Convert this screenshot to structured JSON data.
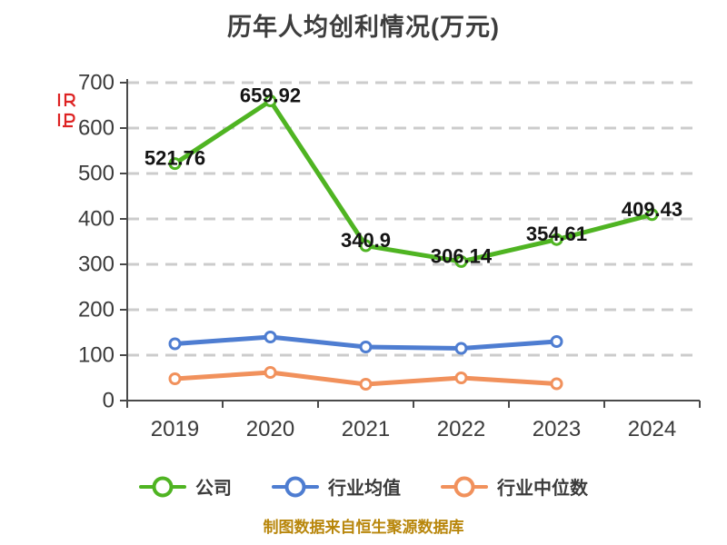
{
  "title": "历年人均创利情况(万元)",
  "credit": "制图数据来自恒生聚源数据库",
  "colors": {
    "title": "#3d3d3d",
    "axis": "#4a4a4a",
    "grid": "#cccccc",
    "axis_label": "#3b3b3b",
    "data_label": "#141414",
    "credit": "#b8860b",
    "watermark_red": "#dd2222",
    "company_green": "#4fb422",
    "industry_avg_blue": "#4e7dd1",
    "industry_median_orange": "#f1915c"
  },
  "chart_data": {
    "type": "line",
    "title": "历年人均创利情况(万元)",
    "categories": [
      "2019",
      "2020",
      "2021",
      "2022",
      "2023",
      "2024"
    ],
    "series": [
      {
        "name": "公司",
        "color": "#4fb422",
        "values": [
          521.76,
          659.92,
          340.9,
          306.14,
          354.61,
          409.43
        ],
        "data_labels": true
      },
      {
        "name": "行业均值",
        "color": "#4e7dd1",
        "values": [
          125,
          140,
          118,
          115,
          130,
          null
        ],
        "data_labels": false
      },
      {
        "name": "行业中位数",
        "color": "#f1915c",
        "values": [
          48,
          62,
          36,
          50,
          37,
          null
        ],
        "data_labels": false
      }
    ],
    "ylim": [
      0,
      700
    ],
    "ytick_step": 100,
    "ytick_labels": [
      "0",
      "100",
      "200",
      "300",
      "400",
      "500",
      "600",
      "700"
    ],
    "grid": "horizontal-dashed",
    "legend_position": "bottom",
    "legend": [
      "公司",
      "行业均值",
      "行业中位数"
    ],
    "marker": "circle-white-fill"
  }
}
